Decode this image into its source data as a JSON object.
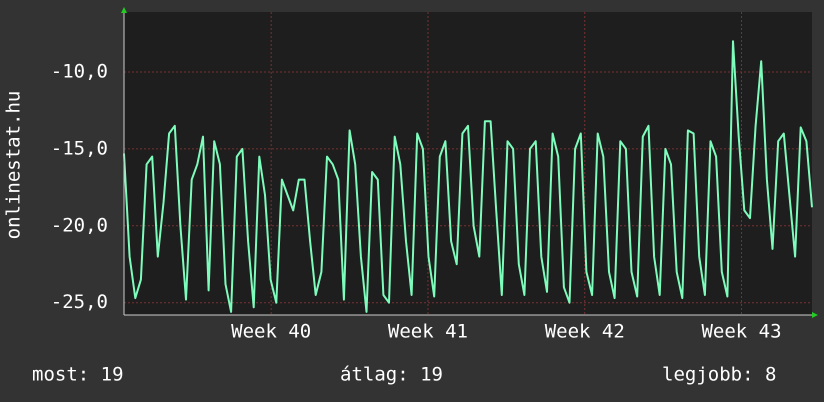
{
  "chart_data": {
    "type": "line",
    "ylabel": "onlinestat.hu",
    "color": "#7dfcbc",
    "grid": true,
    "ylim": [
      -25.8,
      -6.1
    ],
    "yticks": [
      {
        "value": -10,
        "label": "-10,0"
      },
      {
        "value": -15,
        "label": "-15,0"
      },
      {
        "value": -20,
        "label": "-20,0"
      },
      {
        "value": -25,
        "label": "-25,0"
      }
    ],
    "xlim": [
      0,
      122
    ],
    "xticks": [
      {
        "value": 26.1,
        "label": "Week 40"
      },
      {
        "value": 53.9,
        "label": "Week 41"
      },
      {
        "value": 81.7,
        "label": "Week 42"
      },
      {
        "value": 109.5,
        "label": "Week 43"
      }
    ],
    "values": [
      -15.3,
      -22,
      -24.7,
      -23.5,
      -16,
      -15.5,
      -22,
      -18.5,
      -14,
      -13.5,
      -20,
      -24.8,
      -17,
      -16,
      -14.2,
      -24.2,
      -14.5,
      -16,
      -23.8,
      -25.6,
      -15.5,
      -15,
      -21,
      -25.3,
      -15.5,
      -18,
      -23.5,
      -25,
      -17,
      -18,
      -19,
      -17,
      -17,
      -21,
      -24.5,
      -23,
      -15.5,
      -16,
      -17,
      -24.8,
      -13.8,
      -16,
      -22,
      -25.6,
      -16.5,
      -17,
      -24.5,
      -25,
      -14.2,
      -16,
      -21,
      -24.5,
      -14,
      -15,
      -22,
      -24.6,
      -15.5,
      -14.5,
      -21,
      -22.5,
      -14,
      -13.5,
      -20,
      -22,
      -13.2,
      -13.2,
      -19,
      -24.5,
      -14.5,
      -15,
      -22.5,
      -24.5,
      -15,
      -14.5,
      -22,
      -24.3,
      -14,
      -15.5,
      -24,
      -25,
      -15,
      -14,
      -23,
      -24.5,
      -14,
      -15.5,
      -23,
      -24.7,
      -14.5,
      -15,
      -23,
      -24.6,
      -14.2,
      -13.5,
      -22,
      -24.5,
      -15,
      -16,
      -23,
      -24.7,
      -13.8,
      -14,
      -22,
      -24.5,
      -14.5,
      -15.5,
      -23,
      -24.6,
      -8,
      -14.2,
      -19,
      -19.5,
      -13.5,
      -9.3,
      -17,
      -21.5,
      -14.5,
      -14,
      -18,
      -22,
      -13.6,
      -14.5,
      -18.8
    ],
    "footer": {
      "current": "most: 19",
      "average": "átlag: 19",
      "best": "legjobb: 8"
    }
  }
}
